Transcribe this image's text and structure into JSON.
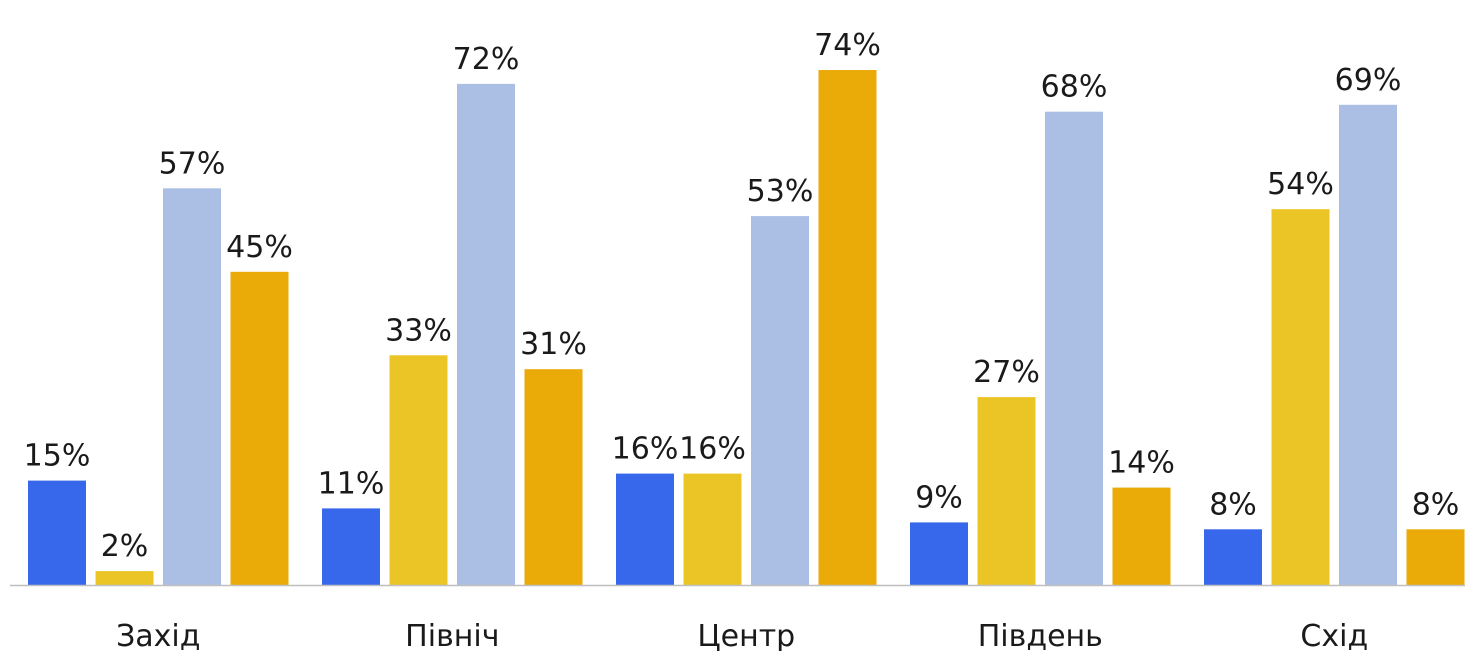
{
  "chart_data": {
    "type": "bar",
    "categories": [
      "Захід",
      "Північ",
      "Центр",
      "Південь",
      "Схід"
    ],
    "series": [
      {
        "color": "#3767EB",
        "values": [
          15,
          11,
          16,
          9,
          8
        ],
        "labels": [
          "15%",
          "11%",
          "16%",
          "9%",
          "8%"
        ]
      },
      {
        "color": "#EBC526",
        "values": [
          2,
          33,
          16,
          27,
          54
        ],
        "labels": [
          "2%",
          "33%",
          "16%",
          "27%",
          "54%"
        ]
      },
      {
        "color": "#ABBFE4",
        "values": [
          57,
          72,
          53,
          68,
          69
        ],
        "labels": [
          "57%",
          "72%",
          "53%",
          "68%",
          "69%"
        ]
      },
      {
        "color": "#EAAA07",
        "values": [
          45,
          31,
          74,
          14,
          8
        ],
        "labels": [
          "45%",
          "31%",
          "74%",
          "14%",
          "8%"
        ]
      }
    ],
    "ylim": [
      0,
      80
    ],
    "grid": false,
    "legend": "none",
    "baseline_color": "#BFBFBF"
  }
}
